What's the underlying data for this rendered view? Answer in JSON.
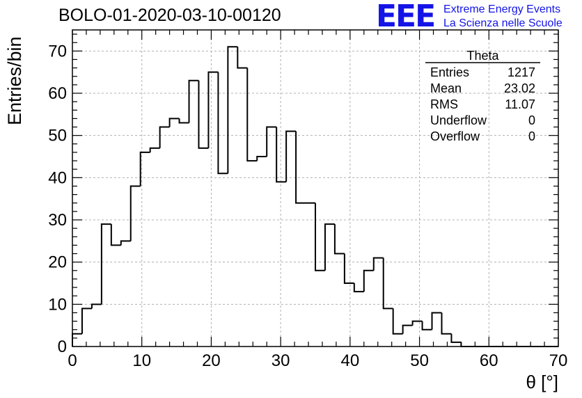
{
  "header": {
    "title": "BOLO-01-2020-03-10-00120",
    "logo_text": "EEE",
    "logo_line1": "Extreme Energy Events",
    "logo_line2": "La Scienza nelle Scuole"
  },
  "stats_box": {
    "title": "Theta",
    "rows": [
      {
        "label": "Entries",
        "value": "1217"
      },
      {
        "label": "Mean",
        "value": "23.02"
      },
      {
        "label": "RMS",
        "value": "11.07"
      },
      {
        "label": "Underflow",
        "value": "0"
      },
      {
        "label": "Overflow",
        "value": "0"
      }
    ]
  },
  "colors": {
    "logo": "#1414e6",
    "grid": "#b0b0b0",
    "line": "#000000"
  },
  "chart_data": {
    "type": "bar",
    "style": "step-histogram",
    "xlabel": "θ [°]",
    "ylabel": "Entries/bin",
    "xlim": [
      0,
      70
    ],
    "ylim": [
      0,
      75
    ],
    "grid": true,
    "bin_width": 1.4,
    "x_ticks": [
      0,
      10,
      20,
      30,
      40,
      50,
      60,
      70
    ],
    "y_ticks": [
      0,
      10,
      20,
      30,
      40,
      50,
      60,
      70
    ],
    "values": [
      3,
      9,
      10,
      29,
      24,
      25,
      38,
      46,
      47,
      52,
      54,
      53,
      63,
      47,
      65,
      41,
      71,
      66,
      44,
      45,
      52,
      39,
      51,
      34,
      34,
      18,
      29,
      22,
      15,
      13,
      18,
      21,
      9,
      3,
      5,
      6,
      4,
      8,
      3,
      1,
      0,
      0,
      0,
      0,
      0,
      0,
      0,
      0,
      0,
      0
    ]
  }
}
